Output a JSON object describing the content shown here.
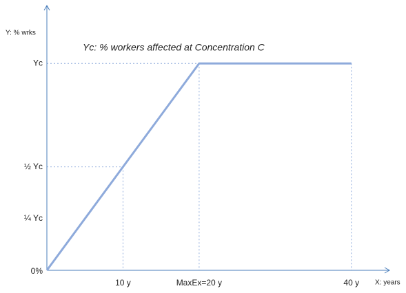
{
  "chart_data": {
    "type": "line",
    "title": "Yc: % workers affected at Concentration C",
    "y_label": "Y: % wrks",
    "x_label": "X: years",
    "x": [
      0,
      20,
      40
    ],
    "series": [
      {
        "name": null,
        "color": "#8eaadb",
        "values": [
          0,
          1,
          1
        ]
      }
    ],
    "xlim": [
      0,
      45
    ],
    "ylim": [
      0,
      1.28
    ],
    "xticks": [
      {
        "value": 10,
        "label": "10 y"
      },
      {
        "value": 20,
        "label": "MaxEx=20 y"
      },
      {
        "value": 40,
        "label": "40 y"
      }
    ],
    "yticks": [
      {
        "value": 0,
        "label": "0%"
      },
      {
        "value": 0.25,
        "label": "¼ Yc"
      },
      {
        "value": 0.5,
        "label": "½ Yc"
      },
      {
        "value": 1,
        "label": "Yc"
      }
    ],
    "axis_color": "#4a7ebb",
    "guide_color": "#8eaadb"
  }
}
